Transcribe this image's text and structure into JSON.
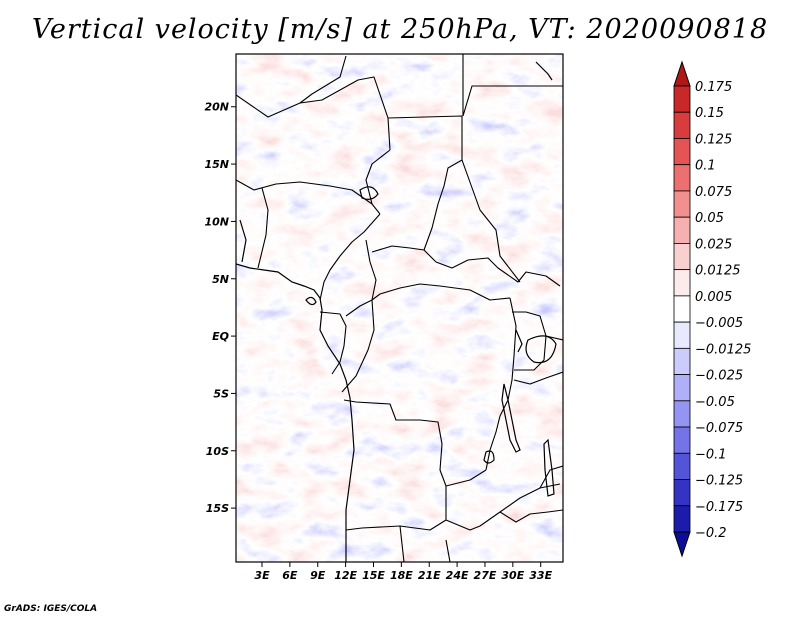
{
  "title": "Vertical velocity [m/s] at 250hPa, VT: 2020090818",
  "credit": "GrADS: IGES/COLA",
  "map": {
    "lat_labels": [
      "20N",
      "15N",
      "10N",
      "5N",
      "EQ",
      "5S",
      "10S",
      "15S"
    ],
    "lon_labels": [
      "3E",
      "6E",
      "9E",
      "12E",
      "15E",
      "18E",
      "21E",
      "24E",
      "27E",
      "30E",
      "33E"
    ],
    "lon_range": [
      0.2,
      35.4
    ],
    "lat_range": [
      -19.7,
      24.6
    ]
  },
  "colorbar": {
    "levels": [
      "0.175",
      "0.15",
      "0.125",
      "0.1",
      "0.075",
      "0.05",
      "0.025",
      "0.0125",
      "0.005",
      "−0.005",
      "−0.0125",
      "−0.025",
      "−0.05",
      "−0.075",
      "−0.1",
      "−0.125",
      "−0.175",
      "−0.2"
    ],
    "colors": [
      "#b01818",
      "#c82828",
      "#d83c3c",
      "#e45454",
      "#ec7070",
      "#f29090",
      "#f6b0b0",
      "#f9d0d0",
      "#fdeaea",
      "#ffffff",
      "#e8e8ff",
      "#ccccfc",
      "#b0b0f8",
      "#9494f2",
      "#7474e8",
      "#5454d8",
      "#3434c4",
      "#1c1cac",
      "#0c0c96"
    ]
  },
  "colors": {
    "border": "#000000"
  }
}
